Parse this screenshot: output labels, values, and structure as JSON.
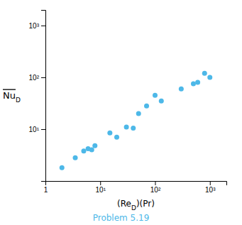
{
  "chart_data": {
    "type": "scatter",
    "x": [
      2,
      3.5,
      5,
      6,
      7,
      8,
      15,
      20,
      30,
      40,
      50,
      70,
      100,
      130,
      300,
      500,
      600,
      800,
      1000
    ],
    "values": [
      1.8,
      2.8,
      3.8,
      4.2,
      4.0,
      4.8,
      8.5,
      7.0,
      11.0,
      10.5,
      20,
      28,
      45,
      35,
      60,
      75,
      80,
      120,
      100
    ],
    "color": "#4db8e8",
    "xlabel": "(ReD)(Pr)",
    "ylabel": "NuD",
    "caption": "Problem 5.19",
    "log": true,
    "xlim": [
      1,
      2000
    ],
    "ylim": [
      1,
      2000
    ],
    "xticks": [
      1,
      {
        "value": 10,
        "label": "10¹"
      },
      {
        "value": 100,
        "label": "10²"
      },
      {
        "value": 1000,
        "label": "10³"
      }
    ],
    "yticks": [
      {
        "value": 1,
        "label": null
      },
      {
        "value": 10,
        "label": "10¹"
      },
      {
        "value": 100,
        "label": "10²"
      },
      {
        "value": 1000,
        "label": "10³"
      }
    ]
  }
}
